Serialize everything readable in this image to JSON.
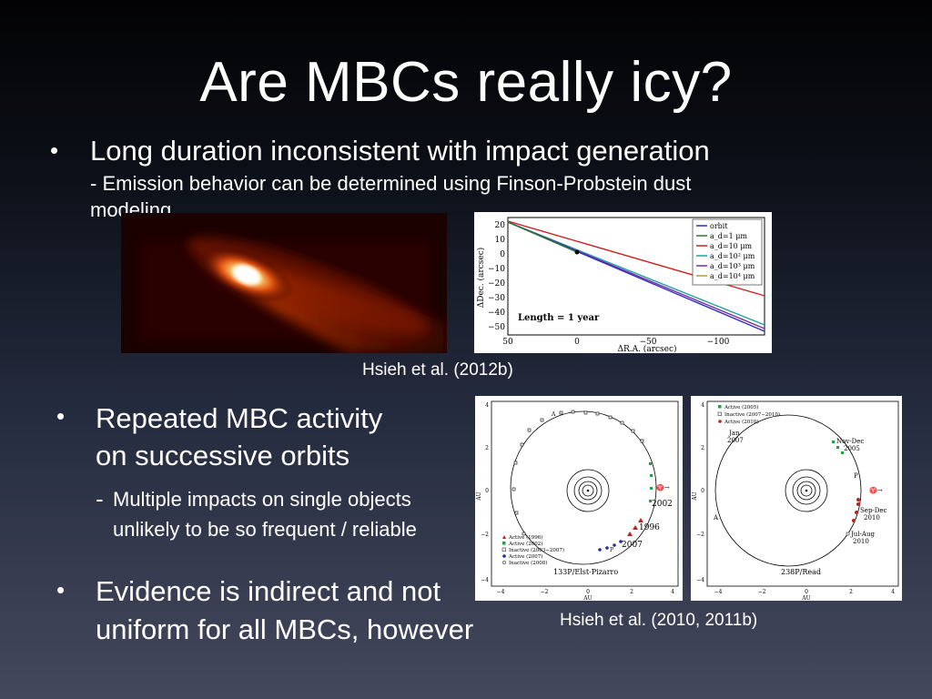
{
  "slide": {
    "title": "Are MBCs really icy?",
    "bullets": [
      {
        "text": "Long duration inconsistent with impact generation",
        "sub": [
          "- Emission behavior can be determined using Finson-Probstein dust",
          "modeling"
        ]
      },
      {
        "lines": [
          "Repeated MBC activity",
          "on successive orbits"
        ],
        "sub_prefix": "-",
        "sub": [
          "Multiple impacts on single objects",
          "unlikely to be so frequent / reliable"
        ]
      },
      {
        "lines": [
          "Evidence is indirect and not",
          "uniform for all MBCs, however"
        ]
      }
    ],
    "captions": {
      "top": "Hsieh et al. (2012b)",
      "bottom": "Hsieh et al. (2010, 2011b)"
    }
  },
  "fp_plot": {
    "xlabel": "ΔR.A. (arcsec)",
    "ylabel": "ΔDec. (arcsec)",
    "xticks": [
      "50",
      "0",
      "−50",
      "−100"
    ],
    "yticks": [
      "20",
      "10",
      "0",
      "−10",
      "−20",
      "−30",
      "−40",
      "−50"
    ],
    "annotation": "Length = 1 year",
    "legend": [
      {
        "label": "orbit",
        "color": "#3030c0"
      },
      {
        "label": "a_d=1 μm",
        "color": "#2a7a2a"
      },
      {
        "label": "a_d=10 μm",
        "color": "#d02020"
      },
      {
        "label": "a_d=10² μm",
        "color": "#20a0a0"
      },
      {
        "label": "a_d=10³ μm",
        "color": "#7a2a9a"
      },
      {
        "label": "a_d=10⁴ μm",
        "color": "#b0a020"
      }
    ]
  },
  "orbit_133p": {
    "name": "133P/Elst-Pizarro",
    "axis_label": "AU",
    "labels": {
      "y2002": "2002",
      "y1996": "1996",
      "y2007": "2007",
      "aphelion": "A",
      "perihelion": "P",
      "vernal": "♈→"
    },
    "xticks": [
      "−4",
      "−2",
      "0",
      "2",
      "4"
    ],
    "yticks": [
      "4",
      "2",
      "0",
      "−2",
      "−4"
    ],
    "legend": [
      {
        "label": "Active (1996)",
        "color": "#c02020"
      },
      {
        "label": "Active (2002)",
        "color": "#20a040"
      },
      {
        "label": "Inactive (2003−2007)",
        "color": "#ffffff"
      },
      {
        "label": "Active (2007)",
        "color": "#2030a0"
      },
      {
        "label": "Inactive (2008)",
        "color": "#ffffff"
      }
    ]
  },
  "orbit_238p": {
    "name": "238P/Read",
    "axis_label": "AU",
    "labels": {
      "jan": "Jan",
      "jan_year": "2007",
      "novdec": "Nov-Dec",
      "novdec_year": "2005",
      "sepdec": "Sep-Dec",
      "sepdec_year": "2010",
      "julaug": "Jul-Aug",
      "julaug_year": "2010",
      "aphelion": "A",
      "perihelion": "P",
      "vernal": "♈→"
    },
    "xticks": [
      "−4",
      "−2",
      "0",
      "2",
      "4"
    ],
    "yticks": [
      "4",
      "2",
      "0",
      "−2",
      "−4"
    ],
    "legend": [
      {
        "label": "Active (2005)",
        "color": "#20a040"
      },
      {
        "label": "Inactive (2007−2010)",
        "color": "#ffffff"
      },
      {
        "label": "Active (2010)",
        "color": "#c02020"
      }
    ]
  }
}
